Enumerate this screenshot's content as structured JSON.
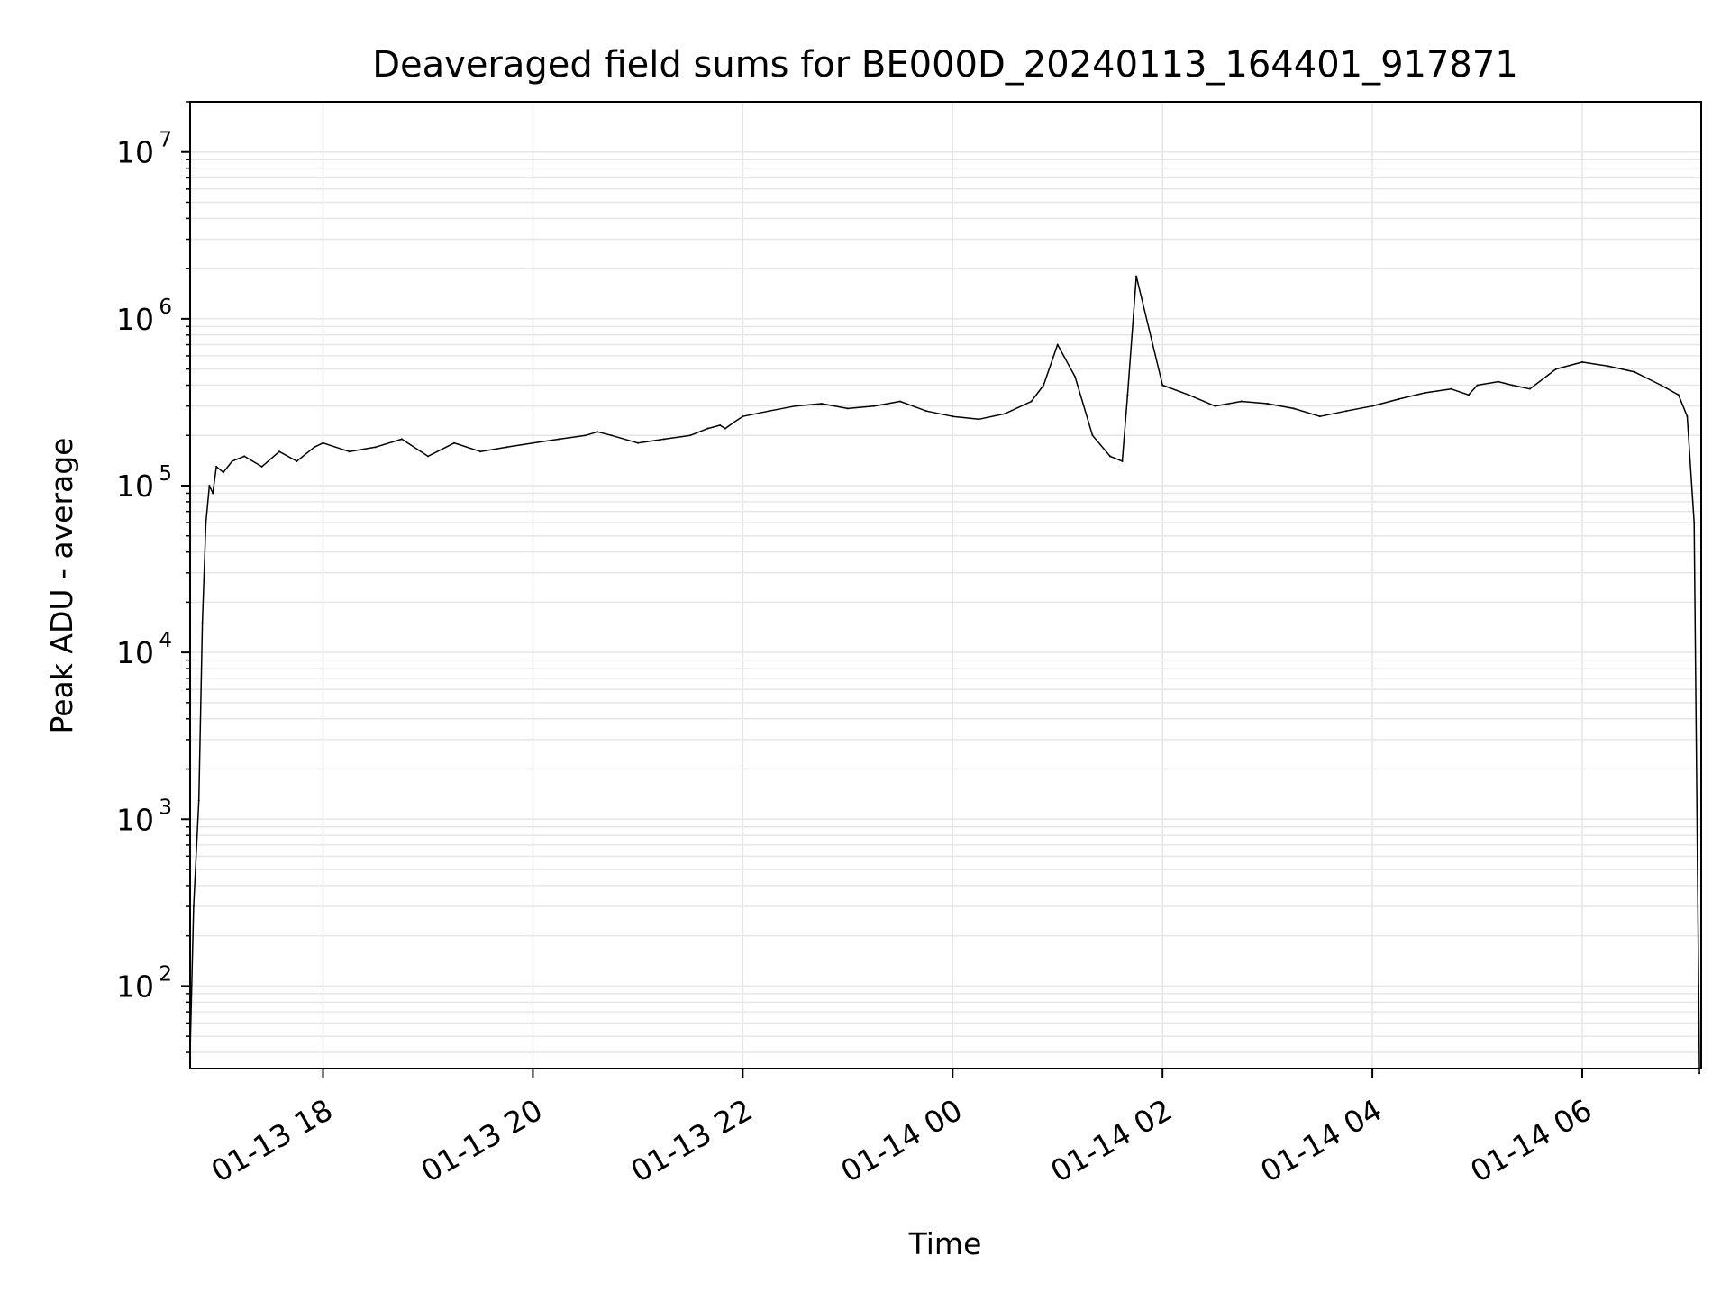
{
  "chart_data": {
    "type": "line",
    "title": "Deaveraged field sums for BE000D_20240113_164401_917871",
    "xlabel": "Time",
    "ylabel": "Peak ADU - average",
    "yscale": "log",
    "ylim": [
      32,
      20000000
    ],
    "xlim": [
      "2024-01-13 16:44",
      "2024-01-14 07:08"
    ],
    "grid": true,
    "line_color": "#000000",
    "grid_color": "#e6e6e6",
    "x_ticks": [
      {
        "value": "2024-01-13 18:00",
        "label": "01-13 18"
      },
      {
        "value": "2024-01-13 20:00",
        "label": "01-13 20"
      },
      {
        "value": "2024-01-13 22:00",
        "label": "01-13 22"
      },
      {
        "value": "2024-01-14 00:00",
        "label": "01-14 00"
      },
      {
        "value": "2024-01-14 02:00",
        "label": "01-14 02"
      },
      {
        "value": "2024-01-14 04:00",
        "label": "01-14 04"
      },
      {
        "value": "2024-01-14 06:00",
        "label": "01-14 06"
      }
    ],
    "y_ticks": [
      {
        "value": 100,
        "base": "10",
        "exp": "2"
      },
      {
        "value": 1000,
        "base": "10",
        "exp": "3"
      },
      {
        "value": 10000,
        "base": "10",
        "exp": "4"
      },
      {
        "value": 100000,
        "base": "10",
        "exp": "5"
      },
      {
        "value": 1000000,
        "base": "10",
        "exp": "6"
      },
      {
        "value": 10000000,
        "base": "10",
        "exp": "7"
      }
    ],
    "series": [
      {
        "x": [
          "2024-01-13 16:44",
          "2024-01-13 16:46",
          "2024-01-13 16:49",
          "2024-01-13 16:51",
          "2024-01-13 16:53",
          "2024-01-13 16:55",
          "2024-01-13 16:57",
          "2024-01-13 16:59",
          "2024-01-13 17:03",
          "2024-01-13 17:08",
          "2024-01-13 17:15",
          "2024-01-13 17:25",
          "2024-01-13 17:35",
          "2024-01-13 17:45",
          "2024-01-13 17:55",
          "2024-01-13 18:00",
          "2024-01-13 18:15",
          "2024-01-13 18:30",
          "2024-01-13 18:45",
          "2024-01-13 19:00",
          "2024-01-13 19:15",
          "2024-01-13 19:30",
          "2024-01-13 19:45",
          "2024-01-13 20:00",
          "2024-01-13 20:15",
          "2024-01-13 20:30",
          "2024-01-13 20:37",
          "2024-01-13 20:45",
          "2024-01-13 21:00",
          "2024-01-13 21:15",
          "2024-01-13 21:30",
          "2024-01-13 21:40",
          "2024-01-13 21:47",
          "2024-01-13 21:50",
          "2024-01-13 21:55",
          "2024-01-13 22:00",
          "2024-01-13 22:15",
          "2024-01-13 22:30",
          "2024-01-13 22:45",
          "2024-01-13 23:00",
          "2024-01-13 23:15",
          "2024-01-13 23:30",
          "2024-01-13 23:45",
          "2024-01-14 00:00",
          "2024-01-14 00:15",
          "2024-01-14 00:30",
          "2024-01-14 00:45",
          "2024-01-14 00:52",
          "2024-01-14 01:00",
          "2024-01-14 01:10",
          "2024-01-14 01:20",
          "2024-01-14 01:30",
          "2024-01-14 01:37",
          "2024-01-14 01:40",
          "2024-01-14 01:45",
          "2024-01-14 02:00",
          "2024-01-14 02:15",
          "2024-01-14 02:30",
          "2024-01-14 02:45",
          "2024-01-14 03:00",
          "2024-01-14 03:15",
          "2024-01-14 03:30",
          "2024-01-14 03:45",
          "2024-01-14 04:00",
          "2024-01-14 04:15",
          "2024-01-14 04:30",
          "2024-01-14 04:45",
          "2024-01-14 04:55",
          "2024-01-14 05:00",
          "2024-01-14 05:12",
          "2024-01-14 05:20",
          "2024-01-14 05:30",
          "2024-01-14 05:45",
          "2024-01-14 06:00",
          "2024-01-14 06:15",
          "2024-01-14 06:30",
          "2024-01-14 06:45",
          "2024-01-14 06:55",
          "2024-01-14 07:00",
          "2024-01-14 07:04",
          "2024-01-14 07:07"
        ],
        "y": [
          40,
          300,
          1300,
          15000,
          60000,
          100000,
          90000,
          130000,
          120000,
          140000,
          150000,
          130000,
          160000,
          140000,
          170000,
          180000,
          160000,
          170000,
          190000,
          150000,
          180000,
          160000,
          170000,
          180000,
          190000,
          200000,
          210000,
          200000,
          180000,
          190000,
          200000,
          220000,
          230000,
          220000,
          240000,
          260000,
          280000,
          300000,
          310000,
          290000,
          300000,
          320000,
          280000,
          260000,
          250000,
          270000,
          320000,
          400000,
          700000,
          450000,
          200000,
          150000,
          140000,
          350000,
          1800000,
          400000,
          350000,
          300000,
          320000,
          310000,
          290000,
          260000,
          280000,
          300000,
          330000,
          360000,
          380000,
          350000,
          400000,
          420000,
          400000,
          380000,
          500000,
          550000,
          520000,
          480000,
          400000,
          350000,
          260000,
          60000,
          30
        ]
      }
    ]
  }
}
